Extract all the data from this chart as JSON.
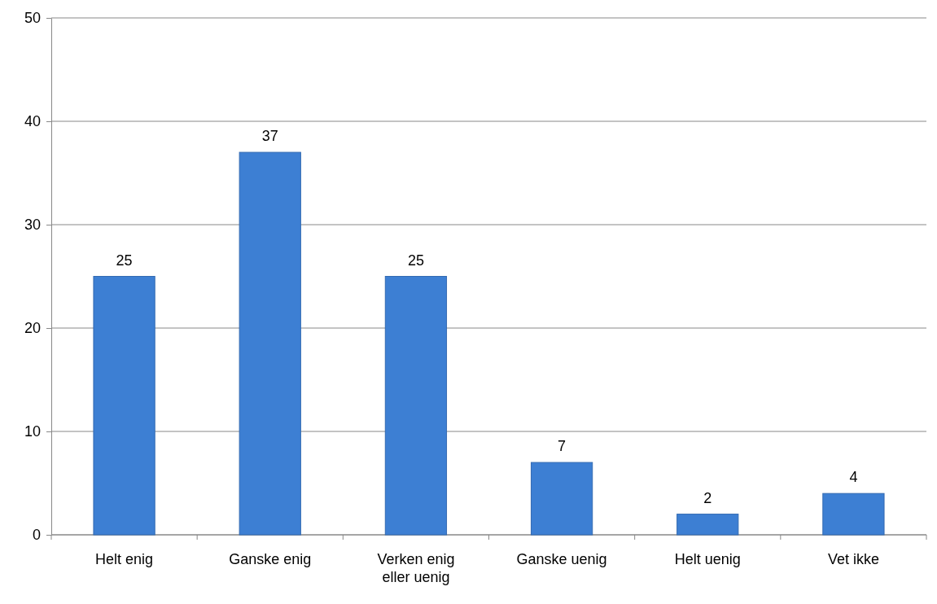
{
  "chart_data": {
    "type": "bar",
    "categories": [
      "Helt enig",
      "Ganske enig",
      "Verken enig eller uenig",
      "Ganske uenig",
      "Helt uenig",
      "Vet ikke"
    ],
    "values": [
      25,
      37,
      25,
      7,
      2,
      4
    ],
    "color": "#3d7fd3",
    "ylim": [
      0,
      50
    ],
    "yticks": [
      0,
      10,
      20,
      30,
      40,
      50
    ],
    "grid": "y",
    "data_labels": true
  }
}
